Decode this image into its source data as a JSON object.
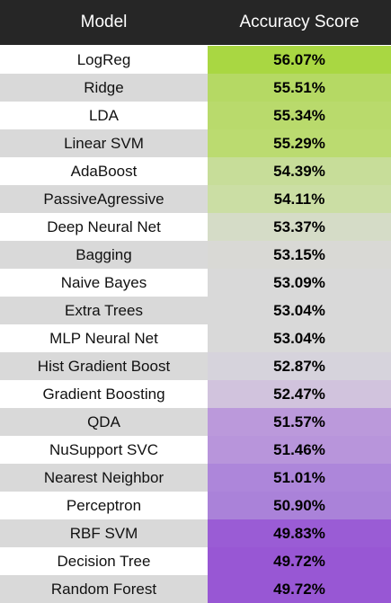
{
  "header": {
    "model": "Model",
    "score": "Accuracy Score"
  },
  "chart_data": {
    "type": "table",
    "columns": [
      "Model",
      "Accuracy Score"
    ],
    "rows": [
      {
        "model": "LogReg",
        "score": "56.07%",
        "value": 56.07,
        "color": "#a9d742"
      },
      {
        "model": "Ridge",
        "score": "55.51%",
        "value": 55.51,
        "color": "#b5d964"
      },
      {
        "model": "LDA",
        "score": "55.34%",
        "value": 55.34,
        "color": "#b9da6c"
      },
      {
        "model": "Linear SVM",
        "score": "55.29%",
        "value": 55.29,
        "color": "#bbdb70"
      },
      {
        "model": "AdaBoost",
        "score": "54.39%",
        "value": 54.39,
        "color": "#c7dd99"
      },
      {
        "model": "PassiveAgressive",
        "score": "54.11%",
        "value": 54.11,
        "color": "#cbdea4"
      },
      {
        "model": "Deep Neural Net",
        "score": "53.37%",
        "value": 53.37,
        "color": "#d5dcc7"
      },
      {
        "model": "Bagging",
        "score": "53.15%",
        "value": 53.15,
        "color": "#d9d9d5"
      },
      {
        "model": "Naive Bayes",
        "score": "53.09%",
        "value": 53.09,
        "color": "#d9d9d9"
      },
      {
        "model": "Extra Trees",
        "score": "53.04%",
        "value": 53.04,
        "color": "#d9d9d9"
      },
      {
        "model": "MLP Neural Net",
        "score": "53.04%",
        "value": 53.04,
        "color": "#d9d9d9"
      },
      {
        "model": "Hist Gradient Boost",
        "score": "52.87%",
        "value": 52.87,
        "color": "#d6d3dc"
      },
      {
        "model": "Gradient Boosting",
        "score": "52.47%",
        "value": 52.47,
        "color": "#d1c3dd"
      },
      {
        "model": "QDA",
        "score": "51.57%",
        "value": 51.57,
        "color": "#bb99db"
      },
      {
        "model": "NuSupport SVC",
        "score": "51.46%",
        "value": 51.46,
        "color": "#b895db"
      },
      {
        "model": "Nearest Neighbor",
        "score": "51.01%",
        "value": 51.01,
        "color": "#ad86da"
      },
      {
        "model": "Perceptron",
        "score": "50.90%",
        "value": 50.9,
        "color": "#aa82d9"
      },
      {
        "model": "RBF SVM",
        "score": "49.83%",
        "value": 49.83,
        "color": "#9a5cd5"
      },
      {
        "model": "Decision Tree",
        "score": "49.72%",
        "value": 49.72,
        "color": "#9857d4"
      },
      {
        "model": "Random Forest",
        "score": "49.72%",
        "value": 49.72,
        "color": "#9857d4"
      }
    ]
  }
}
